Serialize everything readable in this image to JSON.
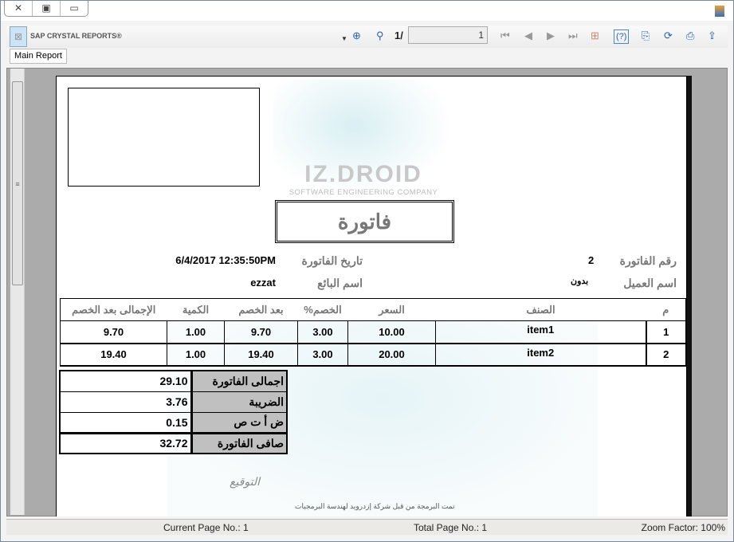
{
  "window": {
    "buttons": [
      "close",
      "restore",
      "minimize"
    ]
  },
  "toolbar": {
    "brand": "SAP CRYSTAL REPORTS®",
    "page_prefix": "1/",
    "page_value": "1",
    "icons": [
      "zoom-icon",
      "find-icon",
      "first-page-icon",
      "prev-page-icon",
      "next-page-icon",
      "last-page-icon",
      "group-tree-icon",
      "help-icon",
      "copy-icon",
      "refresh-icon",
      "print-icon",
      "export-icon"
    ]
  },
  "tabs": {
    "main": "Main Report"
  },
  "report": {
    "logo_text": "IZ.DROID",
    "logo_sub": "SOFTWARE ENGINEERING COMPANY",
    "title": "فاتورة",
    "invoice_no_label": "رقم الفاتورة",
    "invoice_no": "2",
    "date_label": "تاريخ الفاتورة",
    "date": "6/4/2017  12:35:50PM",
    "customer_label": "اسم العميل",
    "customer": "بدون",
    "seller_label": "اسم البائع",
    "seller": "ezzat",
    "columns": [
      "الإجمالى بعد الخصم",
      "الكمية",
      "بعد الخصم",
      "%الخصم",
      "السعر",
      "الصنف",
      "م"
    ],
    "rows": [
      [
        "9.70",
        "1.00",
        "9.70",
        "3.00",
        "10.00",
        "item1",
        "1"
      ],
      [
        "19.40",
        "1.00",
        "19.40",
        "3.00",
        "20.00",
        "item2",
        "2"
      ]
    ],
    "totals": [
      {
        "label": "اجمالى الفاتورة",
        "value": "29.10"
      },
      {
        "label": "الضريبة",
        "value": "3.76"
      },
      {
        "label": "ض أ ت ص",
        "value": "0.15"
      },
      {
        "label": "صافى الفاتورة",
        "value": "32.72"
      }
    ],
    "signature": "التوقيع",
    "credit": "تمت البرمجة من قبل شركة إزدرويد لهندسة البرمجيات"
  },
  "status": {
    "current": "Current Page No.: 1",
    "total": "Total Page No.: 1",
    "zoom": "Zoom Factor: 100%"
  }
}
